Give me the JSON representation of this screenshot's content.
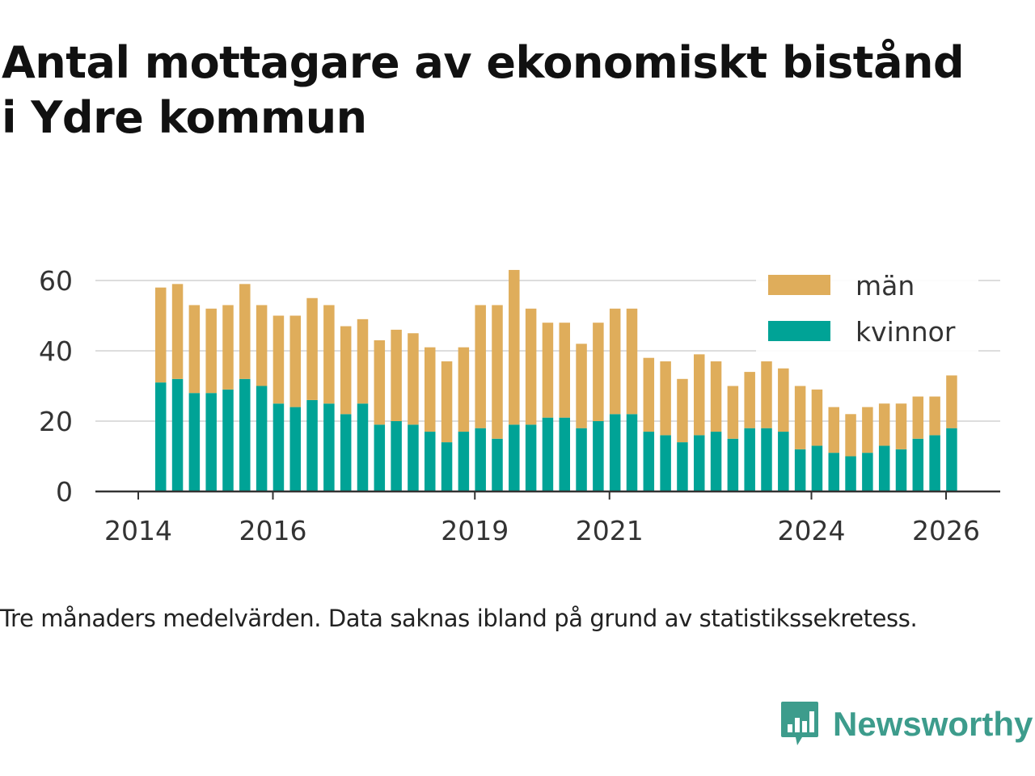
{
  "title_line1": "Antal mottagare av ekonomiskt bistånd",
  "title_line2": "i Ydre kommun",
  "caption": "Tre månaders medelvärden. Data saknas ibland på grund av statistikssekretess.",
  "brand": {
    "name": "Newsworthy",
    "icon": "newsworthy-logo-icon",
    "color": "#3d9c8c"
  },
  "chart_data": {
    "type": "bar",
    "stacked": true,
    "title": "Antal mottagare av ekonomiskt bistånd i Ydre kommun",
    "x_ticks": [
      "2014",
      "2016",
      "2019",
      "2021",
      "2024",
      "2026"
    ],
    "y_ticks": [
      0,
      20,
      40,
      60
    ],
    "ylim": [
      0,
      66
    ],
    "grid": true,
    "legend_position": "top-right",
    "categories": [
      "2014-05",
      "2014-08",
      "2014-11",
      "2015-02",
      "2015-05",
      "2015-08",
      "2015-11",
      "2016-02",
      "2016-05",
      "2016-08",
      "2016-11",
      "2017-02",
      "2017-05",
      "2017-08",
      "2017-11",
      "2018-02",
      "2018-05",
      "2018-08",
      "2018-11",
      "2019-02",
      "2019-05",
      "2019-08",
      "2019-11",
      "2020-02",
      "2020-05",
      "2020-08",
      "2020-11",
      "2021-02",
      "2021-05",
      "2021-08",
      "2021-11",
      "2022-02",
      "2022-05",
      "2022-08",
      "2022-11",
      "2023-02",
      "2023-05",
      "2023-08",
      "2023-11",
      "2024-02",
      "2024-05",
      "2024-08",
      "2024-11",
      "2025-02",
      "2025-05",
      "2025-08",
      "2025-11",
      "2026-02"
    ],
    "series": [
      {
        "name": "kvinnor",
        "color": "#00a396",
        "values": [
          31,
          32,
          28,
          28,
          29,
          32,
          30,
          25,
          24,
          26,
          25,
          22,
          25,
          19,
          20,
          19,
          17,
          14,
          17,
          18,
          15,
          19,
          19,
          21,
          21,
          18,
          20,
          22,
          22,
          17,
          16,
          14,
          16,
          17,
          15,
          18,
          18,
          17,
          12,
          13,
          11,
          10,
          11,
          13,
          12,
          15,
          16,
          18
        ]
      },
      {
        "name": "män",
        "color": "#dfad5b",
        "values": [
          27,
          27,
          25,
          24,
          24,
          27,
          23,
          25,
          26,
          29,
          28,
          25,
          24,
          24,
          26,
          26,
          24,
          23,
          24,
          35,
          38,
          44,
          33,
          27,
          27,
          24,
          28,
          30,
          30,
          21,
          21,
          18,
          23,
          20,
          15,
          16,
          19,
          18,
          18,
          16,
          13,
          12,
          13,
          12,
          13,
          12,
          11,
          15
        ]
      }
    ]
  }
}
